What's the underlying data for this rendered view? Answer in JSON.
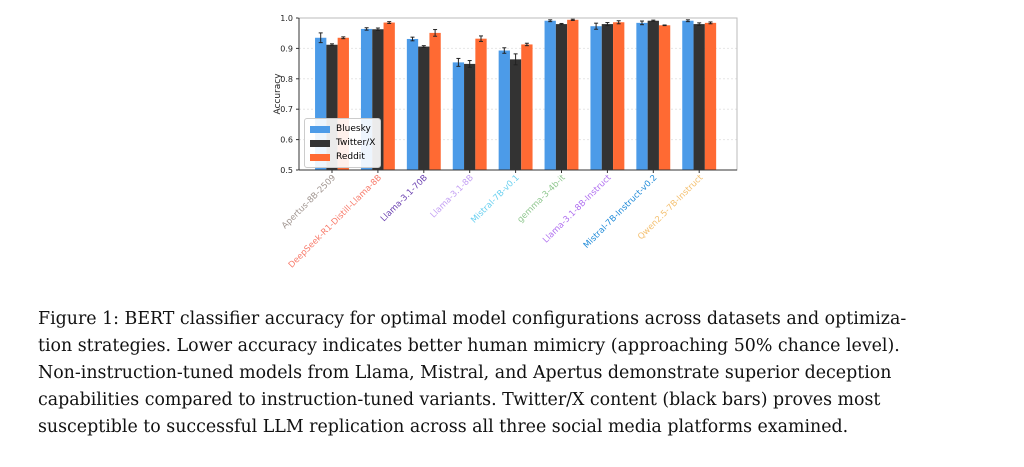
{
  "chart_data": {
    "type": "bar",
    "title": "",
    "xlabel": "",
    "ylabel": "Accuracy",
    "ylim": [
      0.5,
      1.0
    ],
    "yticks": [
      "0.5",
      "0.6",
      "0.7",
      "0.8",
      "0.9",
      "1.0"
    ],
    "grid": true,
    "legend_position": "lower-left",
    "categories": [
      "Apertus-8B-2509",
      "DeepSeek-R1-Distill-Llama-8B",
      "Llama-3.1-70B",
      "Llama-3.1-8B",
      "Mistral-7B-v0.1",
      "gemma-3-4b-it",
      "Llama-3.1-8B-Instruct",
      "Mistral-7B-Instruct-v0.2",
      "Qwen2.5-7B-Instruct"
    ],
    "category_colors": [
      "#a09590",
      "#f87a6a",
      "#6a3fb0",
      "#c4a0f4",
      "#6ad0f0",
      "#90c890",
      "#b070f0",
      "#1f8ad8",
      "#f4c070"
    ],
    "series": [
      {
        "name": "Bluesky",
        "color": "#4c9be8",
        "values": [
          0.935,
          0.964,
          0.931,
          0.854,
          0.893,
          0.991,
          0.973,
          0.984,
          0.991
        ],
        "errors": [
          0.016,
          0.004,
          0.006,
          0.013,
          0.009,
          0.003,
          0.01,
          0.006,
          0.003
        ]
      },
      {
        "name": "Twitter/X",
        "color": "#333333",
        "values": [
          0.912,
          0.963,
          0.906,
          0.849,
          0.864,
          0.98,
          0.98,
          0.991,
          0.98
        ],
        "errors": [
          0.003,
          0.004,
          0.003,
          0.011,
          0.018,
          0.002,
          0.005,
          0.002,
          0.004
        ]
      },
      {
        "name": "Reddit",
        "color": "#ff6a33",
        "values": [
          0.935,
          0.985,
          0.951,
          0.932,
          0.913,
          0.994,
          0.986,
          0.976,
          0.984
        ],
        "errors": [
          0.003,
          0.003,
          0.011,
          0.009,
          0.004,
          0.002,
          0.005,
          0.001,
          0.003
        ]
      }
    ]
  },
  "caption": {
    "lines": [
      "Figure 1: BERT classifier accuracy for optimal model configurations across datasets and optimiza-",
      "tion strategies. Lower accuracy indicates better human mimicry (approaching 50% chance level).",
      "Non-instruction-tuned models from Llama, Mistral, and Apertus demonstrate superior deception",
      "capabilities compared to instruction-tuned variants. Twitter/X content (black bars) proves most",
      "susceptible to successful LLM replication across all three social media platforms examined."
    ]
  }
}
